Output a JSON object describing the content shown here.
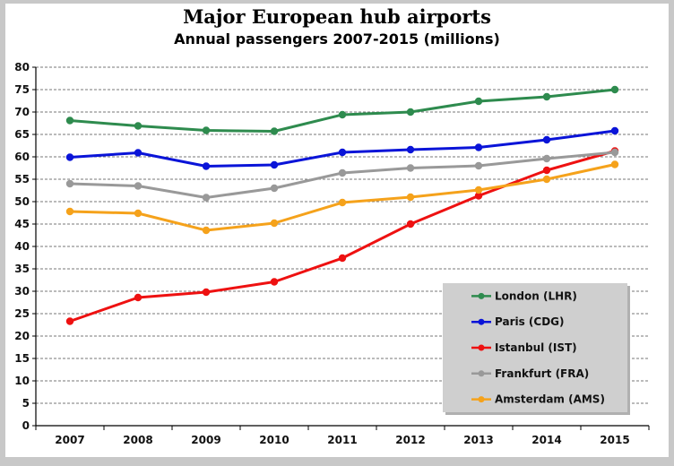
{
  "chart_data": {
    "type": "line",
    "title": "Major European hub airports",
    "subtitle": "Annual passengers 2007-2015 (millions)",
    "xlabel": "",
    "ylabel": "",
    "ylim": [
      0,
      80
    ],
    "yticks": [
      0,
      5,
      10,
      15,
      20,
      25,
      30,
      35,
      40,
      45,
      50,
      55,
      60,
      65,
      70,
      75,
      80
    ],
    "grid": true,
    "legend_position": "bottom-right",
    "categories": [
      "2007",
      "2008",
      "2009",
      "2010",
      "2011",
      "2012",
      "2013",
      "2014",
      "2015"
    ],
    "series": [
      {
        "name": "London (LHR)",
        "color": "#2e8b4e",
        "values": [
          68.1,
          66.9,
          65.9,
          65.7,
          69.4,
          70.0,
          72.4,
          73.4,
          75.0
        ]
      },
      {
        "name": "Paris (CDG)",
        "color": "#0a14d8",
        "values": [
          59.9,
          60.9,
          57.9,
          58.2,
          61.0,
          61.6,
          62.1,
          63.8,
          65.8
        ]
      },
      {
        "name": "Istanbul (IST)",
        "color": "#ee1111",
        "values": [
          23.3,
          28.6,
          29.8,
          32.1,
          37.4,
          45.0,
          51.3,
          57.0,
          61.3
        ]
      },
      {
        "name": "Frankfurt (FRA)",
        "color": "#999999",
        "values": [
          54.0,
          53.5,
          50.9,
          53.0,
          56.4,
          57.5,
          58.0,
          59.6,
          61.0
        ]
      },
      {
        "name": "Amsterdam (AMS)",
        "color": "#f5a21b",
        "values": [
          47.8,
          47.4,
          43.6,
          45.2,
          49.8,
          51.0,
          52.6,
          55.0,
          58.3
        ]
      }
    ]
  }
}
